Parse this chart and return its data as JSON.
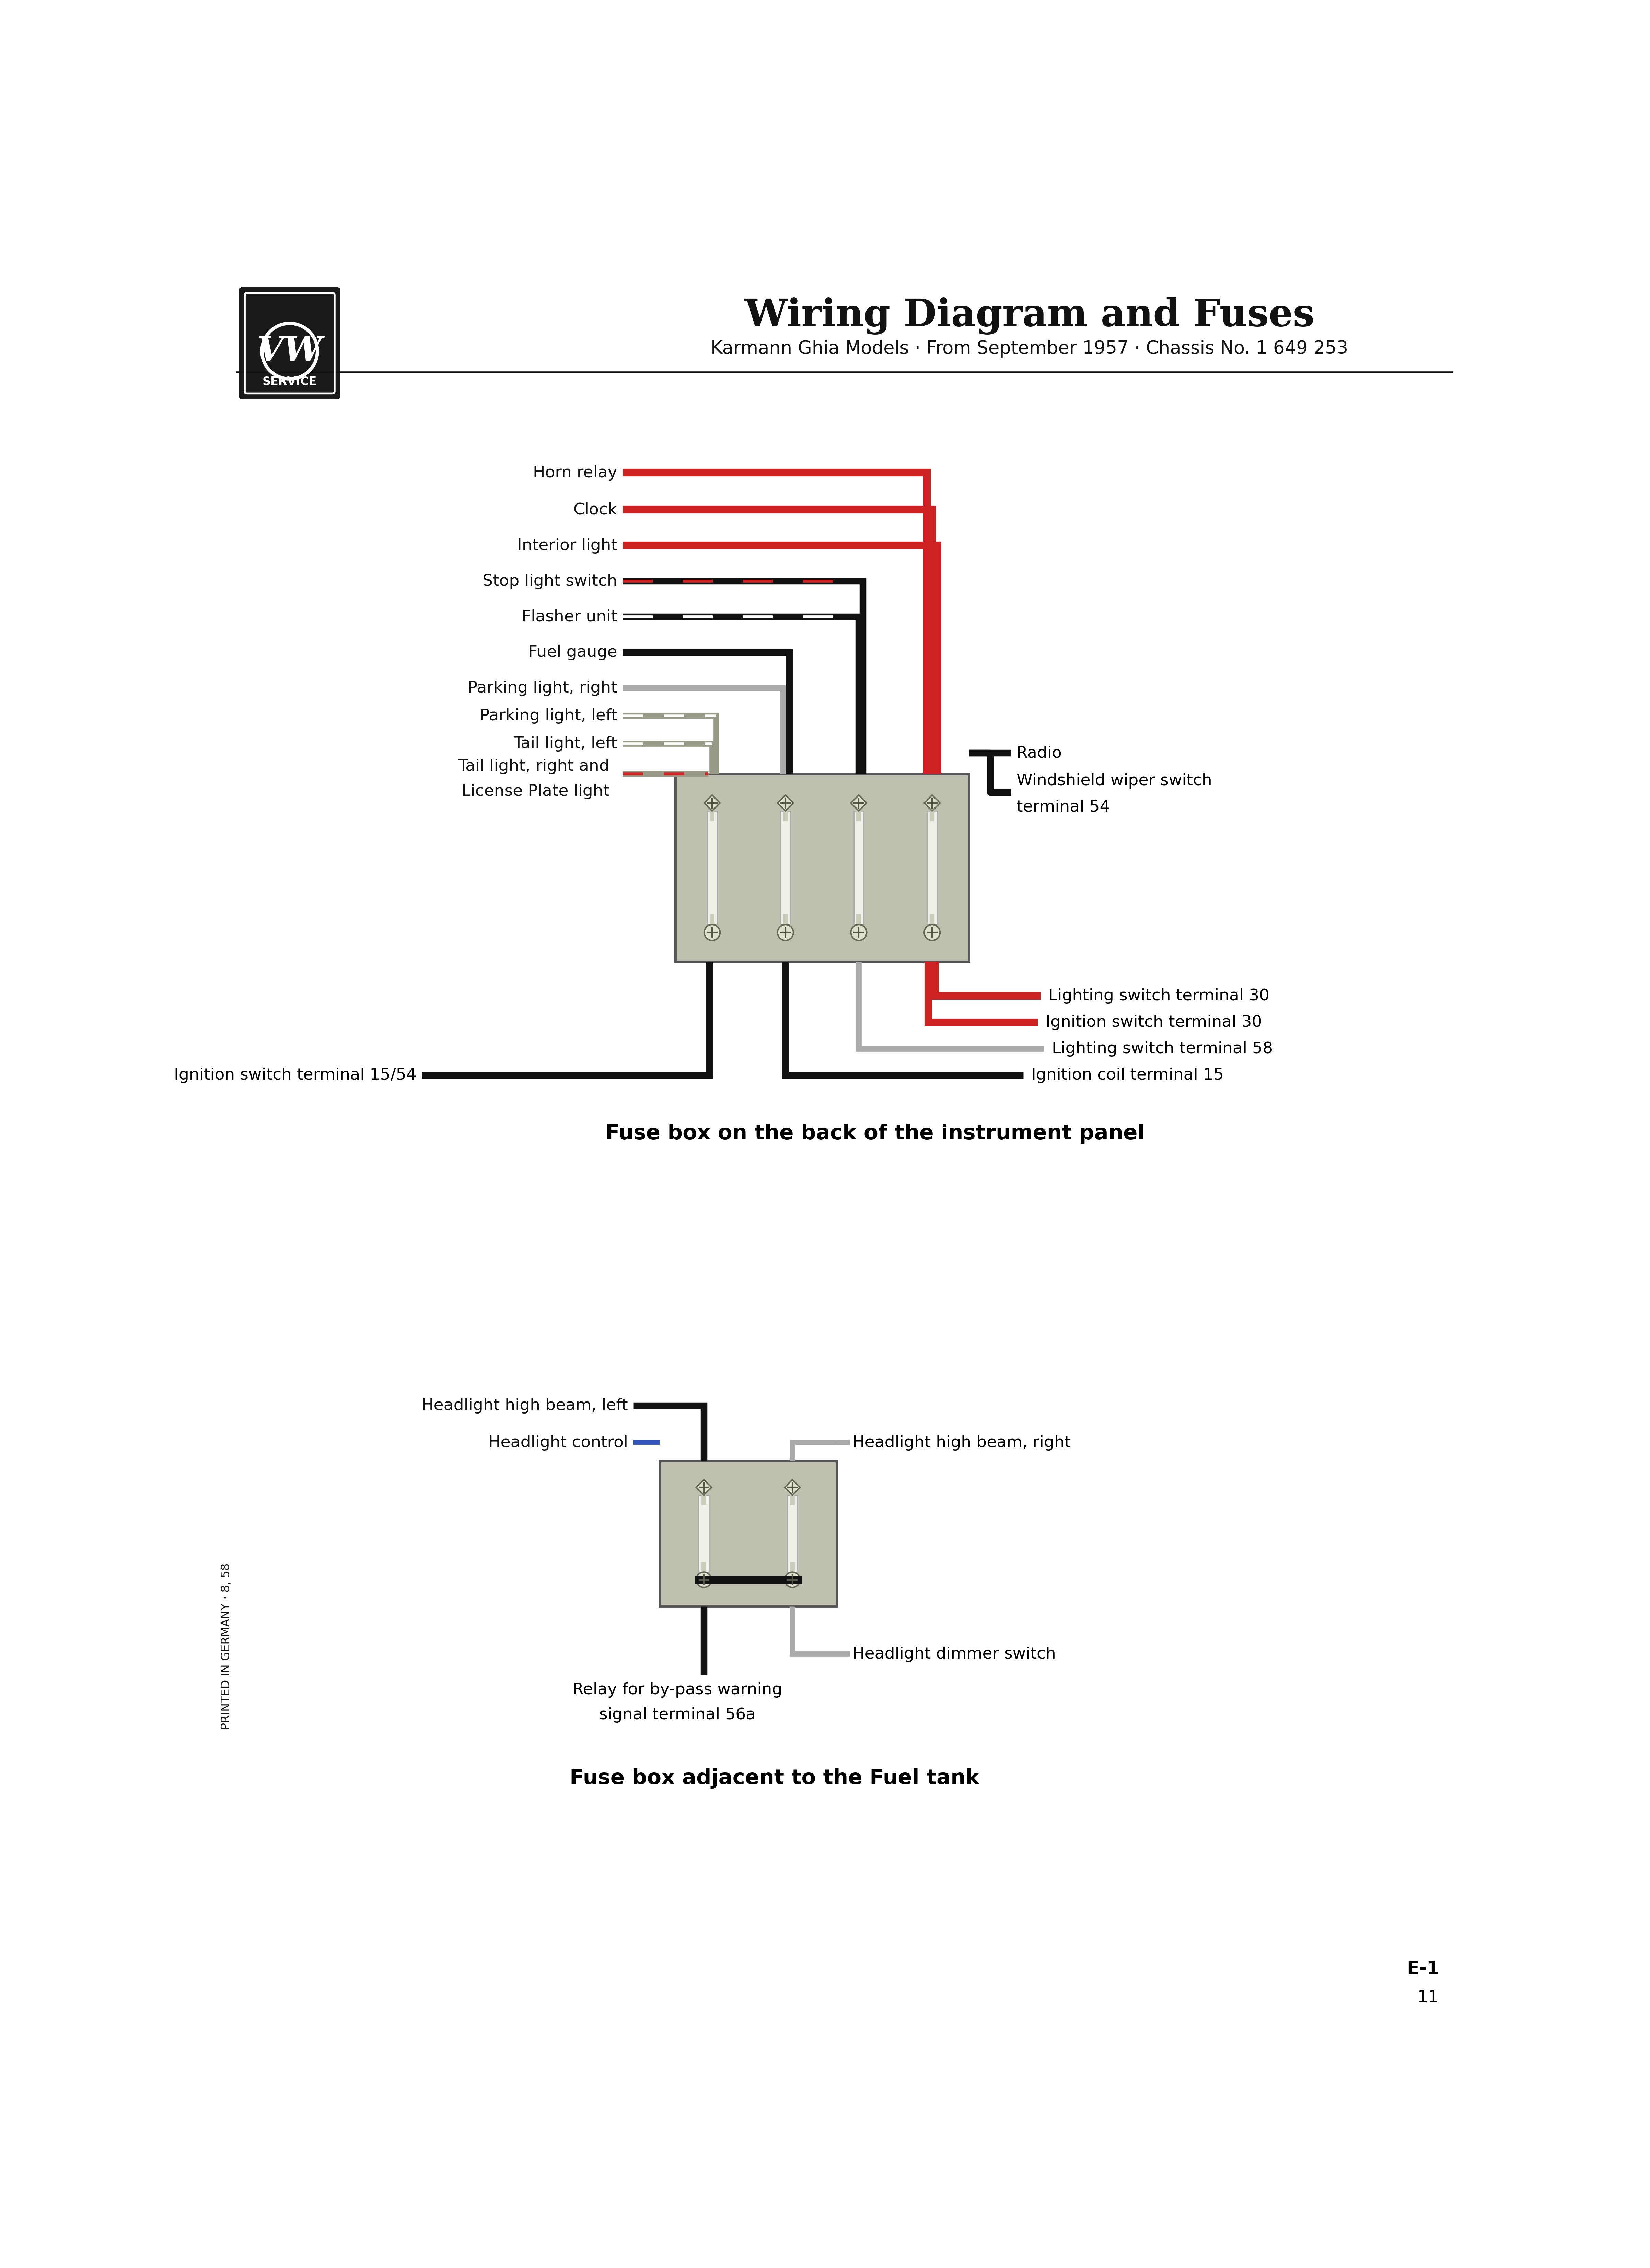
{
  "title": "Wiring Diagram and Fuses",
  "subtitle": "Karmann Ghia Models · From September 1957 · Chassis No. 1 649 253",
  "bg_color": "#ffffff",
  "title_fontsize": 80,
  "subtitle_fontsize": 38,
  "diagram1_title": "Fuse box on the back of the instrument panel",
  "diagram2_title": "Fuse box adjacent to the Fuel tank",
  "page_number": "11",
  "page_code": "E-1",
  "sidebar_text": "PRINTED IN GERMANY · 8, 58",
  "label_fontsize": 34,
  "caption_fontsize": 44,
  "red": "#cc2222",
  "black": "#111111",
  "gray": "#aaaaaa",
  "blue": "#3355bb",
  "fuse_gray": "#c0c0b0",
  "fuse_dark": "#888878"
}
